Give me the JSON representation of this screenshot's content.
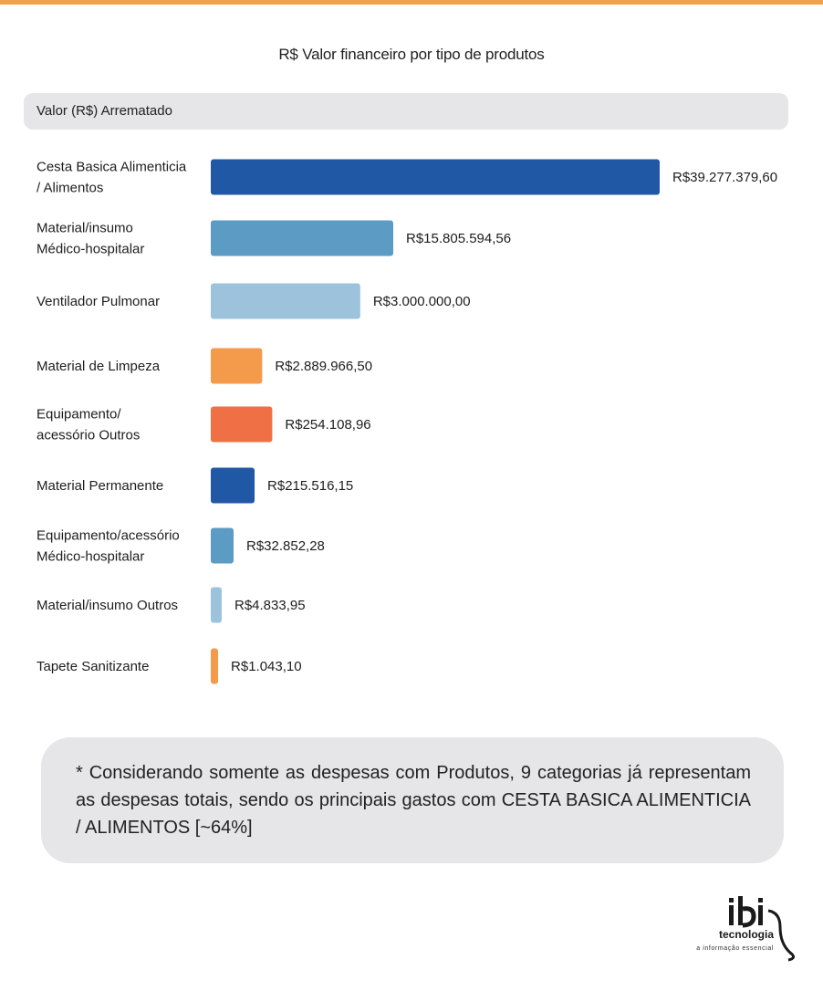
{
  "chart_data": {
    "type": "bar",
    "orientation": "horizontal",
    "title": "R$ Valor financeiro por tipo de produtos",
    "series_label": "Valor (R$) Arrematado",
    "categories": [
      [
        "Cesta Basica Alimenticia",
        "/ Alimentos"
      ],
      [
        "Material/insumo",
        "Médico-hospitalar"
      ],
      [
        "Ventilador Pulmonar"
      ],
      [
        "Material de Limpeza"
      ],
      [
        "Equipamento/",
        "acessório Outros"
      ],
      [
        "Material Permanente"
      ],
      [
        "Equipamento/acessório",
        "Médico-hospitalar"
      ],
      [
        "Material/insumo Outros"
      ],
      [
        "Tapete Sanitizante"
      ]
    ],
    "values": [
      39277379.6,
      15805594.56,
      3000000.0,
      2889966.5,
      254108.96,
      215516.15,
      32852.28,
      4833.95,
      1043.1
    ],
    "value_labels": [
      "R$39.277.379,60",
      "R$15.805.594,56",
      "R$3.000.000,00",
      "R$2.889.966,50",
      "R$254.108,96",
      "R$215.516,15",
      "R$32.852,28",
      "R$4.833,95",
      "R$1.043,10"
    ],
    "colors": [
      "#2158a5",
      "#5b9bc4",
      "#9dc3dc",
      "#f39a4b",
      "#ef7045",
      "#2158a5",
      "#5b9bc4",
      "#9dc3dc",
      "#f39a4b"
    ],
    "grid": false,
    "legend": "none"
  },
  "note": "* Considerando somente as despesas com Produtos, 9 categorias já representam as despesas totais, sendo os principais gastos com CESTA BASICA ALIMENTICIA / ALIMENTOS [~64%]",
  "logo": {
    "brand": "ibi",
    "name": "tecnologia",
    "tagline": "a informação essencial"
  },
  "colors": {
    "accent": "#f3a04a",
    "panel": "#e6e6e8"
  }
}
